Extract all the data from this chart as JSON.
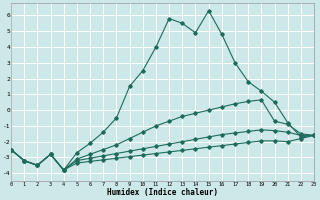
{
  "xlabel": "Humidex (Indice chaleur)",
  "xlim": [
    0,
    23
  ],
  "ylim": [
    -4.5,
    6.8
  ],
  "yticks": [
    -4,
    -3,
    -2,
    -1,
    0,
    1,
    2,
    3,
    4,
    5,
    6
  ],
  "xticks": [
    0,
    1,
    2,
    3,
    4,
    5,
    6,
    7,
    8,
    9,
    10,
    11,
    12,
    13,
    14,
    15,
    16,
    17,
    18,
    19,
    20,
    21,
    22,
    23
  ],
  "background_color": "#cce8e8",
  "grid_color": "#d9e8e8",
  "line_color": "#1e6b5a",
  "curves": [
    {
      "x": [
        0,
        1,
        2,
        3,
        4,
        5,
        6,
        7,
        8,
        9,
        10,
        11,
        12,
        13,
        14,
        15,
        16,
        17,
        18,
        19,
        20,
        21,
        22,
        23
      ],
      "y": [
        -2.5,
        -3.2,
        -3.5,
        -2.8,
        -3.8,
        -2.7,
        -2.1,
        -1.4,
        -0.5,
        1.5,
        2.5,
        4.0,
        5.8,
        5.5,
        4.9,
        6.3,
        4.8,
        3.0,
        1.8,
        1.2,
        0.5,
        -0.8,
        -1.7,
        -1.6
      ]
    },
    {
      "x": [
        0,
        1,
        2,
        3,
        4,
        5,
        6,
        7,
        8,
        9,
        10,
        11,
        12,
        13,
        14,
        15,
        16,
        17,
        18,
        19,
        20,
        21,
        22,
        23
      ],
      "y": [
        -2.5,
        -3.2,
        -3.5,
        -2.8,
        -3.8,
        -3.1,
        -2.8,
        -2.5,
        -2.2,
        -1.8,
        -1.4,
        -1.0,
        -0.7,
        -0.4,
        -0.2,
        0.0,
        0.2,
        0.4,
        0.55,
        0.65,
        -0.7,
        -0.9,
        -1.5,
        -1.6
      ]
    },
    {
      "x": [
        0,
        1,
        2,
        3,
        4,
        5,
        6,
        7,
        8,
        9,
        10,
        11,
        12,
        13,
        14,
        15,
        16,
        17,
        18,
        19,
        20,
        21,
        22,
        23
      ],
      "y": [
        -2.5,
        -3.2,
        -3.5,
        -2.8,
        -3.8,
        -3.2,
        -3.05,
        -2.9,
        -2.75,
        -2.6,
        -2.45,
        -2.3,
        -2.15,
        -2.0,
        -1.85,
        -1.7,
        -1.55,
        -1.45,
        -1.35,
        -1.25,
        -1.3,
        -1.4,
        -1.6,
        -1.6
      ]
    },
    {
      "x": [
        0,
        1,
        2,
        3,
        4,
        5,
        6,
        7,
        8,
        9,
        10,
        11,
        12,
        13,
        14,
        15,
        16,
        17,
        18,
        19,
        20,
        21,
        22,
        23
      ],
      "y": [
        -2.5,
        -3.2,
        -3.5,
        -2.8,
        -3.8,
        -3.35,
        -3.25,
        -3.15,
        -3.05,
        -2.95,
        -2.85,
        -2.75,
        -2.65,
        -2.55,
        -2.45,
        -2.35,
        -2.25,
        -2.15,
        -2.05,
        -1.95,
        -1.95,
        -2.0,
        -1.8,
        -1.6
      ]
    }
  ]
}
